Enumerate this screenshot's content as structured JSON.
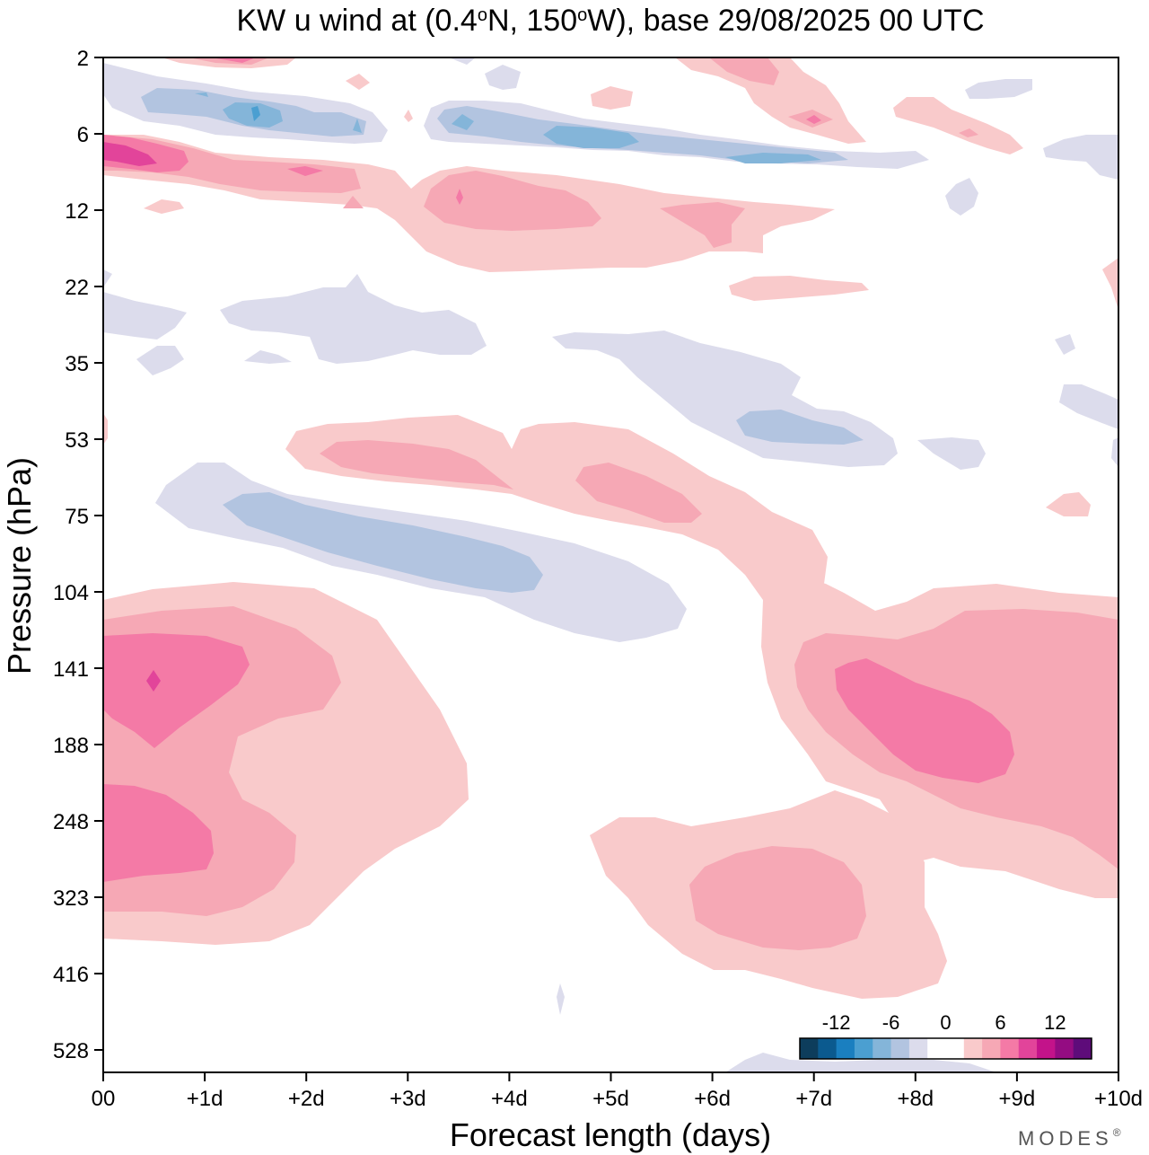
{
  "chart_data": {
    "type": "heatmap",
    "subtype": "filled-contour time-pressure cross-section",
    "title": "KW u wind at (0.4°N, 150°W),  base 29/08/2025  00 UTC",
    "title_parts": {
      "pre": "KW u wind at (0.4",
      "deg1": "o",
      "mid": "N, 150",
      "deg2": "o",
      "post": "W),  base 29/08/2025  00 UTC"
    },
    "xlabel": "Forecast length (days)",
    "ylabel": "Pressure (hPa)",
    "xlim": [
      0,
      10
    ],
    "x_ticks": [
      {
        "value": 0,
        "label": "00"
      },
      {
        "value": 1,
        "label": "+1d"
      },
      {
        "value": 2,
        "label": "+2d"
      },
      {
        "value": 3,
        "label": "+3d"
      },
      {
        "value": 4,
        "label": "+4d"
      },
      {
        "value": 5,
        "label": "+5d"
      },
      {
        "value": 6,
        "label": "+6d"
      },
      {
        "value": 7,
        "label": "+7d"
      },
      {
        "value": 8,
        "label": "+8d"
      },
      {
        "value": 9,
        "label": "+9d"
      },
      {
        "value": 10,
        "label": "+10d"
      }
    ],
    "y_ticks": [
      "2",
      "6",
      "12",
      "22",
      "35",
      "53",
      "75",
      "104",
      "141",
      "188",
      "248",
      "323",
      "416",
      "528"
    ],
    "y_scale": "level index (top = 2 hPa, bottom approx. 650 hPa)",
    "colorbar": {
      "labels": [
        "-12",
        "-6",
        "0",
        "6",
        "12"
      ],
      "label_values": [
        -12,
        -6,
        0,
        6,
        12
      ],
      "colors": [
        "#0d3d5c",
        "#0b5a8f",
        "#1a7fc0",
        "#4b9fd1",
        "#84b5d9",
        "#b2c4e0",
        "#dcdcec",
        "#ffffff",
        "#ffffff",
        "#f9cacb",
        "#f6a8b5",
        "#f47aa6",
        "#e2449a",
        "#c3138a",
        "#940c82",
        "#5e0c7a"
      ]
    },
    "contour_levels": [
      "-6",
      "-4",
      "-2",
      "2",
      "4",
      "6",
      "8"
    ],
    "features": [
      {
        "label": "Pink maximum ~ +8 m/s near 141 hPa at +0.5d",
        "sign": "positive"
      },
      {
        "label": "Pink maximum ~ +6 m/s near 248 hPa at 00",
        "sign": "positive"
      },
      {
        "label": "Blue minimum ~ -4 m/s near 75-104 hPa, +1d to +4.3d",
        "sign": "negative"
      },
      {
        "label": "Pink band ~ +2 to +4 m/s, 53-104 hPa, +2d to +7d",
        "sign": "positive"
      },
      {
        "label": "Pink maximum ~ +6 m/s near 141-188 hPa, +7.5d to +9d",
        "sign": "positive"
      },
      {
        "label": "Pink maximum ~ +4 m/s near 323 hPa at +6.5d",
        "sign": "positive"
      },
      {
        "label": "Blue band ~ -4 to -6 m/s near 4-6 hPa, +0.5d to +7d",
        "sign": "negative"
      },
      {
        "label": "Pink maximum ~ +8 m/s near 6-9 hPa at 00",
        "sign": "positive"
      }
    ]
  },
  "branding": {
    "text": "MODES",
    "mark": "®"
  }
}
